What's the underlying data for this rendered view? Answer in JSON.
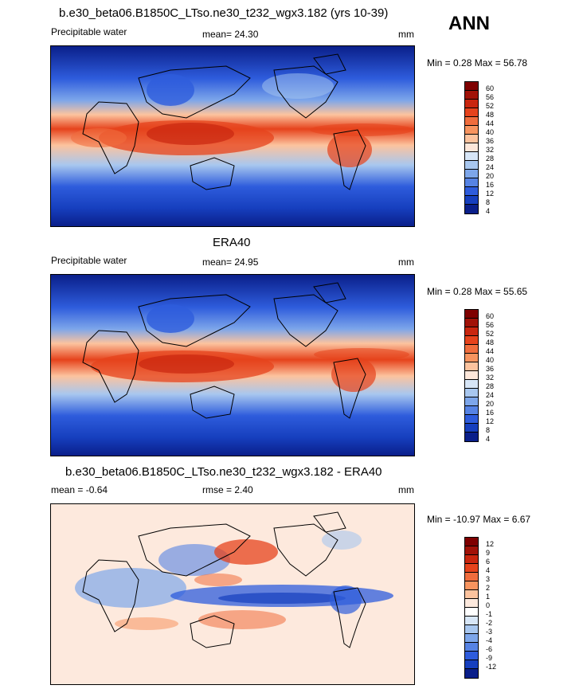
{
  "header": {
    "season": "ANN"
  },
  "panels": [
    {
      "title": "b.e30_beta06.B1850C_LTso.ne30_t232_wgx3.182 (yrs 10-39)",
      "left_label": "Precipitable water",
      "stat_label": "mean=  24.30",
      "units": "mm",
      "minmax": "Min =   0.28 Max =  56.78",
      "colorbar": {
        "labels": [
          "60",
          "56",
          "52",
          "48",
          "44",
          "40",
          "36",
          "32",
          "28",
          "24",
          "20",
          "16",
          "12",
          "8",
          "4"
        ],
        "colors": [
          "#7f0000",
          "#a11208",
          "#c9260f",
          "#e6431c",
          "#f06d3d",
          "#f7945f",
          "#fcc39e",
          "#fde7da",
          "#d7e6f7",
          "#a8c7ef",
          "#7da6ea",
          "#5683e4",
          "#2e5cdc",
          "#163fbe",
          "#0a1f8a"
        ]
      }
    },
    {
      "title": "ERA40",
      "left_label": "Precipitable water",
      "stat_label": "mean=  24.95",
      "units": "mm",
      "minmax": "Min =   0.28 Max =  55.65",
      "colorbar": {
        "labels": [
          "60",
          "56",
          "52",
          "48",
          "44",
          "40",
          "36",
          "32",
          "28",
          "24",
          "20",
          "16",
          "12",
          "8",
          "4"
        ],
        "colors": [
          "#7f0000",
          "#a11208",
          "#c9260f",
          "#e6431c",
          "#f06d3d",
          "#f7945f",
          "#fcc39e",
          "#fde7da",
          "#d7e6f7",
          "#a8c7ef",
          "#7da6ea",
          "#5683e4",
          "#2e5cdc",
          "#163fbe",
          "#0a1f8a"
        ]
      }
    },
    {
      "title": "b.e30_beta06.B1850C_LTso.ne30_t232_wgx3.182 - ERA40",
      "left_label": "mean =  -0.64",
      "stat_label": "rmse =   2.40",
      "units": "mm",
      "minmax": "Min = -10.97 Max =   6.67",
      "colorbar": {
        "labels": [
          "12",
          "9",
          "6",
          "4",
          "3",
          "2",
          "1",
          "0",
          "-1",
          "-2",
          "-3",
          "-4",
          "-6",
          "-9",
          "-12"
        ],
        "colors": [
          "#7f0000",
          "#a11208",
          "#c9260f",
          "#e6431c",
          "#f06d3d",
          "#f7945f",
          "#fcc39e",
          "#fde9dd",
          "#ffffff",
          "#d7e6f7",
          "#a8c7ef",
          "#7da6ea",
          "#5683e4",
          "#2e5cdc",
          "#163fbe",
          "#0a1f8a"
        ]
      }
    }
  ]
}
